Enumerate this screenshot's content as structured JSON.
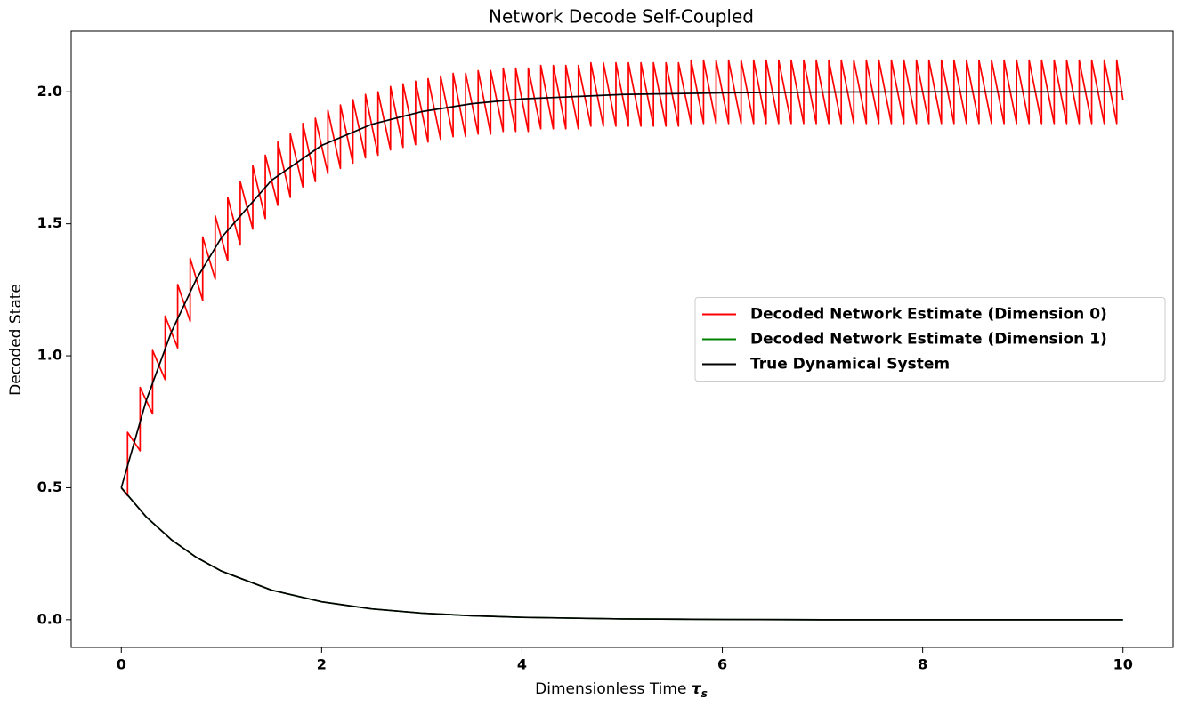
{
  "chart_data": {
    "type": "line",
    "title": "Network Decode Self-Coupled",
    "xlabel": {
      "text": "Dimensionless Time",
      "symbol": "τ",
      "subscript": "s"
    },
    "ylabel": "Decoded State",
    "xlim": [
      -0.5,
      10.5
    ],
    "ylim": [
      -0.105,
      2.23
    ],
    "xticks": [
      0,
      2,
      4,
      6,
      8,
      10
    ],
    "yticks": [
      {
        "value": 0,
        "label": "0.0"
      },
      0.5,
      {
        "value": 1,
        "label": "1.0"
      },
      1.5,
      {
        "value": 2,
        "label": "2.0"
      }
    ],
    "legend": "center right",
    "series": [
      {
        "name": "Decoded Network Estimate (Dimension 0)",
        "color": "#ff0000",
        "x": [
          0,
          0.0625,
          0.0625,
          0.1875,
          0.1875,
          0.3125,
          0.3125,
          0.4375,
          0.4375,
          0.5625,
          0.5625,
          0.6875,
          0.6875,
          0.8125,
          0.8125,
          0.9375,
          0.9375,
          1.0625,
          1.0625,
          1.1875,
          1.1875,
          1.3125,
          1.3125,
          1.4375,
          1.4375,
          1.5625,
          1.5625,
          1.6875,
          1.6875,
          1.8125,
          1.8125,
          1.9375,
          1.9375,
          2.0625,
          2.0625,
          2.1875,
          2.1875,
          2.3125,
          2.3125,
          2.4375,
          2.4375,
          2.5625,
          2.5625,
          2.6875,
          2.6875,
          2.8125,
          2.8125,
          2.9375,
          2.9375,
          3.0625,
          3.0625,
          3.1875,
          3.1875,
          3.3125,
          3.3125,
          3.4375,
          3.4375,
          3.5625,
          3.5625,
          3.6875,
          3.6875,
          3.8125,
          3.8125,
          3.9375,
          3.9375,
          4.0625,
          4.0625,
          4.1875,
          4.1875,
          4.3125,
          4.3125,
          4.4375,
          4.4375,
          4.5625,
          4.5625,
          4.6875,
          4.6875,
          4.8125,
          4.8125,
          4.9375,
          4.9375,
          5.0625,
          5.0625,
          5.1875,
          5.1875,
          5.3125,
          5.3125,
          5.4375,
          5.4375,
          5.5625,
          5.5625,
          5.6875,
          5.6875,
          5.8125,
          5.8125,
          5.9375,
          5.9375,
          6.0625,
          6.0625,
          6.1875,
          6.1875,
          6.3125,
          6.3125,
          6.4375,
          6.4375,
          6.5625,
          6.5625,
          6.6875,
          6.6875,
          6.8125,
          6.8125,
          6.9375,
          6.9375,
          7.0625,
          7.0625,
          7.1875,
          7.1875,
          7.3125,
          7.3125,
          7.4375,
          7.4375,
          7.5625,
          7.5625,
          7.6875,
          7.6875,
          7.8125,
          7.8125,
          7.9375,
          7.9375,
          8.0625,
          8.0625,
          8.1875,
          8.1875,
          8.3125,
          8.3125,
          8.4375,
          8.4375,
          8.5625,
          8.5625,
          8.6875,
          8.6875,
          8.8125,
          8.8125,
          8.9375,
          8.9375,
          9.0625,
          9.0625,
          9.1875,
          9.1875,
          9.3125,
          9.3125,
          9.4375,
          9.4375,
          9.5625,
          9.5625,
          9.6875,
          9.6875,
          9.8125,
          9.8125,
          9.9375,
          9.9375,
          10
        ],
        "values": [
          0.5,
          0.47,
          0.71,
          0.64,
          0.88,
          0.78,
          1.02,
          0.91,
          1.15,
          1.03,
          1.27,
          1.13,
          1.37,
          1.21,
          1.45,
          1.29,
          1.53,
          1.36,
          1.6,
          1.42,
          1.66,
          1.48,
          1.72,
          1.52,
          1.76,
          1.57,
          1.81,
          1.6,
          1.84,
          1.64,
          1.88,
          1.66,
          1.9,
          1.69,
          1.93,
          1.71,
          1.95,
          1.73,
          1.97,
          1.75,
          1.99,
          1.76,
          2.0,
          1.78,
          2.02,
          1.79,
          2.03,
          1.8,
          2.04,
          1.81,
          2.05,
          1.82,
          2.06,
          1.83,
          2.07,
          1.83,
          2.07,
          1.84,
          2.08,
          1.84,
          2.08,
          1.85,
          2.09,
          1.85,
          2.09,
          1.85,
          2.09,
          1.86,
          2.1,
          1.86,
          2.1,
          1.86,
          2.1,
          1.86,
          2.1,
          1.87,
          2.11,
          1.87,
          2.11,
          1.87,
          2.11,
          1.87,
          2.11,
          1.87,
          2.11,
          1.87,
          2.11,
          1.87,
          2.11,
          1.87,
          2.11,
          1.88,
          2.12,
          1.88,
          2.12,
          1.88,
          2.12,
          1.88,
          2.12,
          1.88,
          2.12,
          1.88,
          2.12,
          1.88,
          2.12,
          1.88,
          2.12,
          1.88,
          2.12,
          1.88,
          2.12,
          1.88,
          2.12,
          1.88,
          2.12,
          1.88,
          2.12,
          1.88,
          2.12,
          1.88,
          2.12,
          1.88,
          2.12,
          1.88,
          2.12,
          1.88,
          2.12,
          1.88,
          2.12,
          1.88,
          2.12,
          1.88,
          2.12,
          1.88,
          2.12,
          1.88,
          2.12,
          1.88,
          2.12,
          1.88,
          2.12,
          1.88,
          2.12,
          1.88,
          2.12,
          1.88,
          2.12,
          1.88,
          2.12,
          1.88,
          2.12,
          1.88,
          2.12,
          1.88,
          2.12,
          1.88,
          2.12,
          1.88,
          2.12,
          1.88,
          2.12,
          1.97
        ]
      },
      {
        "name": "Decoded Network Estimate (Dimension 1)",
        "color": "#008000",
        "x": [
          0,
          0.25,
          0.5,
          0.75,
          1,
          1.5,
          2,
          2.5,
          3,
          3.5,
          4,
          5,
          6,
          7,
          8,
          9,
          10
        ],
        "values": [
          0.5,
          0.389,
          0.303,
          0.236,
          0.184,
          0.112,
          0.068,
          0.041,
          0.025,
          0.015,
          0.009,
          0.003,
          0.001,
          0.0,
          0.0,
          0.0,
          0.0
        ]
      },
      {
        "name": "True Dynamical System",
        "color": "#000000",
        "x": [
          0,
          0.25,
          0.5,
          0.75,
          1,
          1.5,
          2,
          2.5,
          3,
          3.5,
          4,
          5,
          6,
          7,
          8,
          9,
          10
        ],
        "values": [
          0.5,
          0.832,
          1.09,
          1.291,
          1.448,
          1.665,
          1.797,
          1.877,
          1.925,
          1.955,
          1.973,
          1.99,
          1.996,
          1.999,
          2.0,
          2.0,
          2.0
        ]
      },
      {
        "color": "#000000",
        "x": [
          0,
          0.25,
          0.5,
          0.75,
          1,
          1.5,
          2,
          2.5,
          3,
          3.5,
          4,
          5,
          6,
          7,
          8,
          9,
          10
        ],
        "values": [
          0.5,
          0.389,
          0.303,
          0.236,
          0.184,
          0.112,
          0.068,
          0.041,
          0.025,
          0.015,
          0.009,
          0.003,
          0.001,
          0.0,
          0.0,
          0.0,
          0.0
        ]
      }
    ]
  }
}
